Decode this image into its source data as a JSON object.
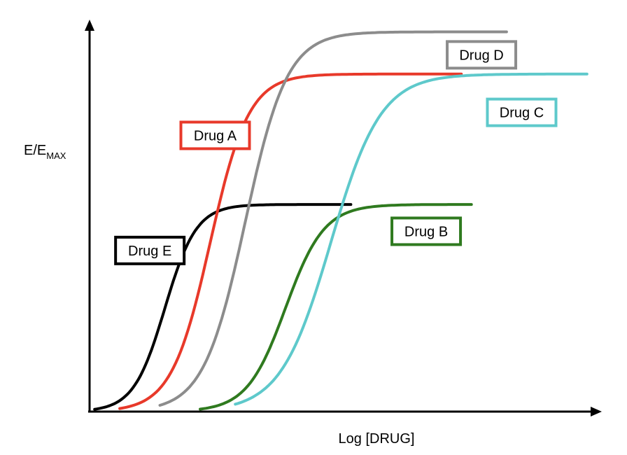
{
  "chart_data": {
    "type": "line",
    "title": "",
    "xlabel": "Log [DRUG]",
    "ylabel": {
      "base": "E/E",
      "subscript": "MAX"
    },
    "x_range": [
      0,
      100
    ],
    "y_range": [
      0,
      1
    ],
    "grid": false,
    "series": [
      {
        "name": "Drug E",
        "color": "#000000",
        "x_start": 1,
        "x_end": 52,
        "midpoint": 15,
        "steepness": 0.32,
        "max": 0.54,
        "label_anchor": [
          12,
          0.42
        ]
      },
      {
        "name": "Drug A",
        "color": "#e8392a",
        "x_start": 6,
        "x_end": 74,
        "midpoint": 24,
        "steepness": 0.26,
        "max": 0.88,
        "label_anchor": [
          25,
          0.72
        ]
      },
      {
        "name": "Drug D",
        "color": "#8c8c8c",
        "x_start": 14,
        "x_end": 83,
        "midpoint": 31,
        "steepness": 0.24,
        "max": 0.99,
        "label_anchor": [
          78,
          0.93
        ]
      },
      {
        "name": "Drug B",
        "color": "#2f7a1f",
        "x_start": 22,
        "x_end": 76,
        "midpoint": 39,
        "steepness": 0.26,
        "max": 0.54,
        "label_anchor": [
          67,
          0.47
        ]
      },
      {
        "name": "Drug C",
        "color": "#5ec9cb",
        "x_start": 29,
        "x_end": 99,
        "midpoint": 48,
        "steepness": 0.2,
        "max": 0.88,
        "label_anchor": [
          86,
          0.78
        ]
      }
    ]
  }
}
